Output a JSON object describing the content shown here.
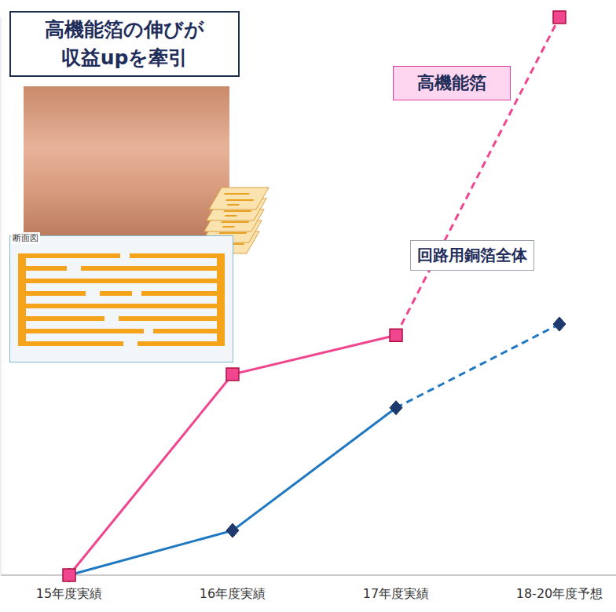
{
  "chart_data": {
    "type": "line",
    "title": "高機能箔の伸びが\n収益upを牽引",
    "annotations": [
      "断面図"
    ],
    "categories": [
      "15年度実績",
      "16年度実績",
      "17年度実績",
      "18-20年度予想"
    ],
    "series": [
      {
        "name": "高機能箔",
        "color": "#f0468f",
        "marker": "square",
        "values": [
          0,
          36,
          43,
          100
        ]
      },
      {
        "name": "回路用銅箔全体",
        "color": "#1f78c1",
        "marker": "diamond",
        "values": [
          0,
          8,
          30,
          45
        ]
      }
    ],
    "ylim": [
      0,
      100
    ],
    "tick_labels": "x",
    "grid": false
  }
}
